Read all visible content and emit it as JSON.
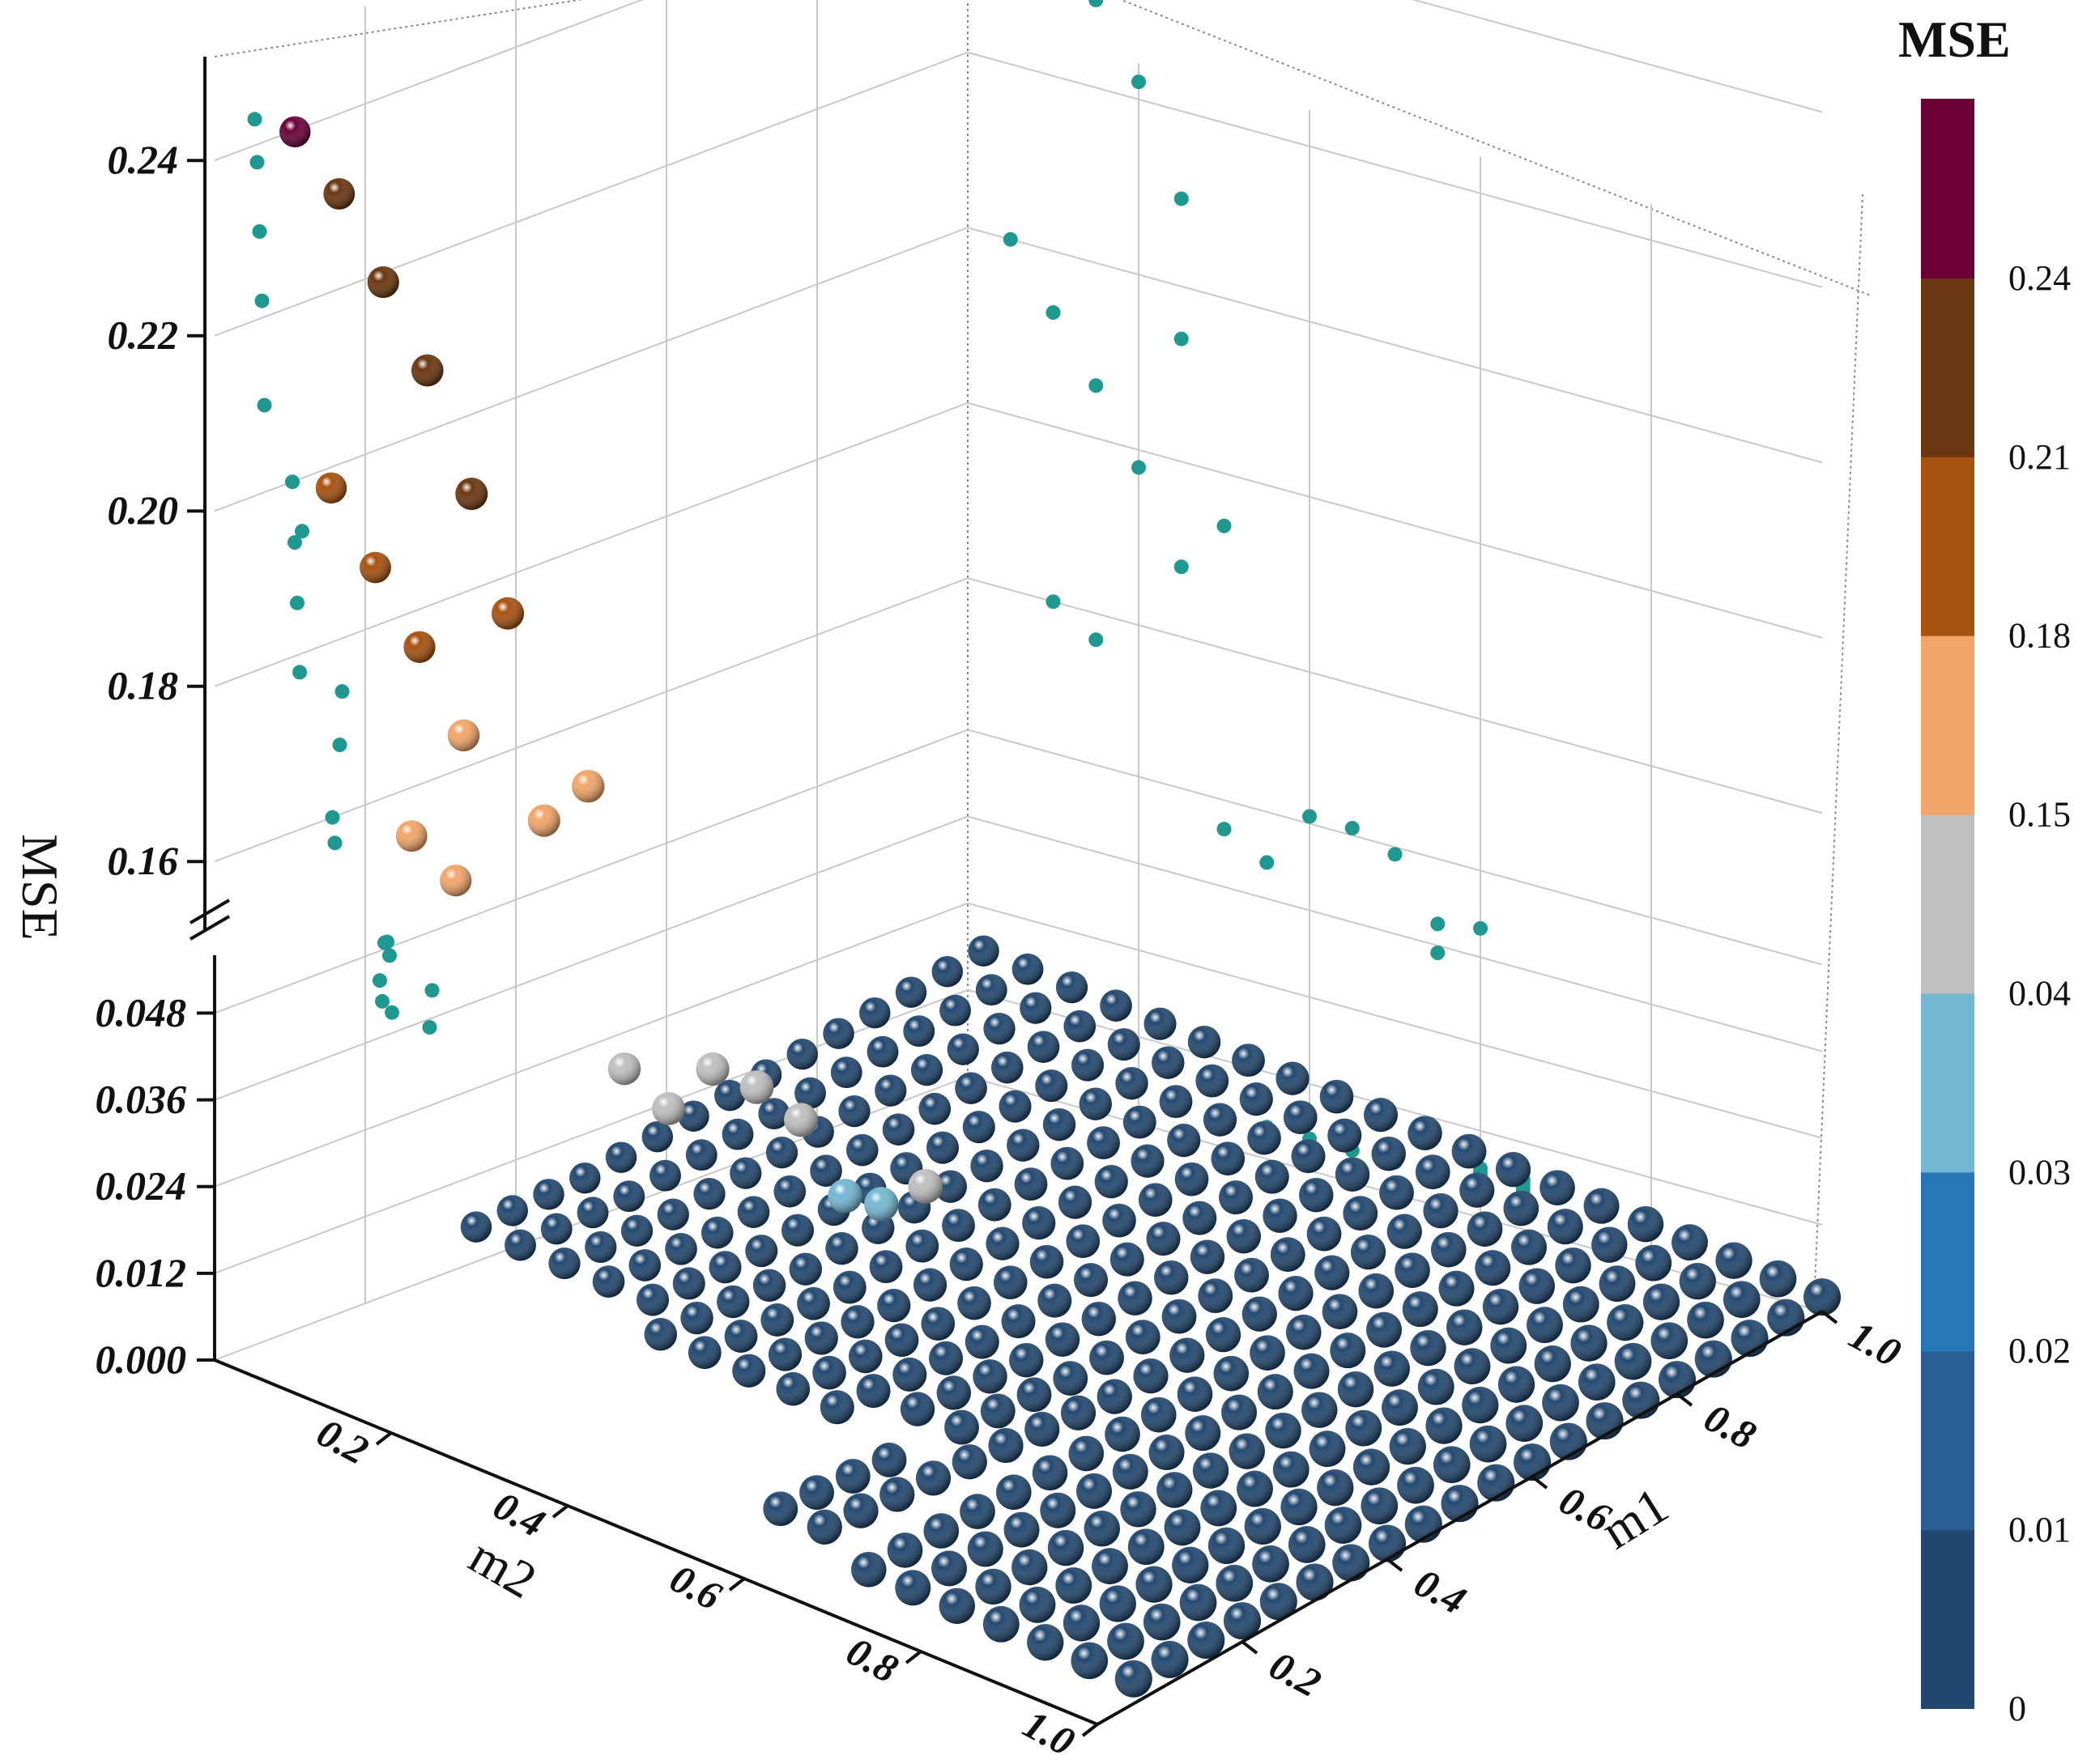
{
  "chart_data": {
    "type": "scatter",
    "title": "",
    "xlabel": "m1",
    "ylabel": "m2",
    "zlabel": "MSE",
    "x_ticks": [
      "0.2",
      "0.4",
      "0.6",
      "0.8",
      "1.0"
    ],
    "y_ticks": [
      "0.2",
      "0.4",
      "0.6",
      "0.8",
      "1.0"
    ],
    "z_ticks_lower": [
      "0.000",
      "0.012",
      "0.024",
      "0.036",
      "0.048"
    ],
    "z_ticks_upper": [
      "0.16",
      "0.18",
      "0.20",
      "0.22",
      "0.24"
    ],
    "z_break": [
      0.056,
      0.153
    ],
    "grid": true,
    "grid_resolution": 0.05,
    "series": [
      {
        "name": "MSE",
        "description": "MSE value at each (m1, m2) combination on a 0.05 grid; near 0 for most of the domain, rising towards m1 -> 0 with small m2"
      },
      {
        "name": "projection-m1-m2-wall",
        "description": "teal projections of points onto back walls"
      }
    ],
    "points_high": [
      {
        "m1": 0.05,
        "m2": 0.05,
        "mse": 0.243
      },
      {
        "m1": 0.05,
        "m2": 0.1,
        "mse": 0.238
      },
      {
        "m1": 0.05,
        "m2": 0.15,
        "mse": 0.23
      },
      {
        "m1": 0.05,
        "m2": 0.2,
        "mse": 0.222
      },
      {
        "m1": 0.05,
        "m2": 0.25,
        "mse": 0.21
      },
      {
        "m1": 0.1,
        "m2": 0.05,
        "mse": 0.2
      },
      {
        "m1": 0.1,
        "m2": 0.1,
        "mse": 0.193
      },
      {
        "m1": 0.1,
        "m2": 0.15,
        "mse": 0.186
      },
      {
        "m1": 0.1,
        "m2": 0.25,
        "mse": 0.194
      },
      {
        "m1": 0.1,
        "m2": 0.2,
        "mse": 0.178
      },
      {
        "m1": 0.15,
        "m2": 0.1,
        "mse": 0.16
      },
      {
        "m1": 0.15,
        "m2": 0.15,
        "mse": 0.157
      },
      {
        "m1": 0.15,
        "m2": 0.25,
        "mse": 0.168
      },
      {
        "m1": 0.15,
        "m2": 0.3,
        "mse": 0.174
      }
    ],
    "points_mid": [
      {
        "m1": 0.2,
        "m2": 0.4,
        "mse": 0.049
      },
      {
        "m1": 0.2,
        "m2": 0.45,
        "mse": 0.049
      },
      {
        "m1": 0.2,
        "m2": 0.5,
        "mse": 0.047
      },
      {
        "m1": 0.2,
        "m2": 0.3,
        "mse": 0.044
      },
      {
        "m1": 0.2,
        "m2": 0.35,
        "mse": 0.041
      },
      {
        "m1": 0.2,
        "m2": 0.55,
        "mse": 0.039
      },
      {
        "m1": 0.25,
        "m2": 0.6,
        "mse": 0.04
      },
      {
        "m1": 0.25,
        "m2": 0.55,
        "mse": 0.035
      }
    ],
    "colorbar": {
      "title": "MSE",
      "labels": [
        "0",
        "0.01",
        "0.02",
        "0.03",
        "0.04",
        "0.15",
        "0.18",
        "0.21",
        "0.24"
      ],
      "colors": [
        "#224870",
        "#2a5f93",
        "#2577b8",
        "#74b9d4",
        "#c0c0c0",
        "#f3a66a",
        "#a8520f",
        "#6b3610",
        "#6b0038"
      ]
    }
  }
}
